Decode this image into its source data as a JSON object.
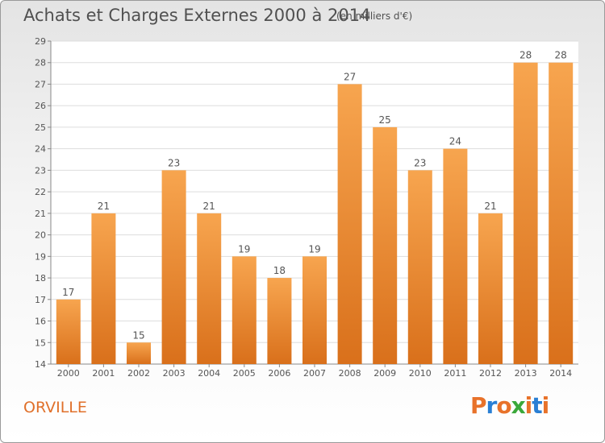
{
  "title": "Achats et Charges Externes 2000 à 2014",
  "subtitle": "(en milliers d'€)",
  "place": "ORVILLE",
  "logo": {
    "text": "Proxiti",
    "colors": [
      "#e8722a",
      "#2a7fd4",
      "#e8722a",
      "#3aa83a",
      "#e8722a",
      "#2a7fd4",
      "#e8722a"
    ]
  },
  "colors": {
    "bar_light": "#f7a54f",
    "bar_dark": "#d9701b",
    "grid": "#dddddd",
    "text": "#555555",
    "accent": "#e0702a"
  },
  "chart_data": {
    "type": "bar",
    "categories": [
      "2000",
      "2001",
      "2002",
      "2003",
      "2004",
      "2005",
      "2006",
      "2007",
      "2008",
      "2009",
      "2010",
      "2011",
      "2012",
      "2013",
      "2014"
    ],
    "values": [
      17,
      21,
      15,
      23,
      21,
      19,
      18,
      19,
      27,
      25,
      23,
      24,
      21,
      28,
      28
    ],
    "ylim": [
      14,
      29
    ],
    "yticks": [
      14,
      15,
      16,
      17,
      18,
      19,
      20,
      21,
      22,
      23,
      24,
      25,
      26,
      27,
      28,
      29
    ],
    "grid": true
  }
}
